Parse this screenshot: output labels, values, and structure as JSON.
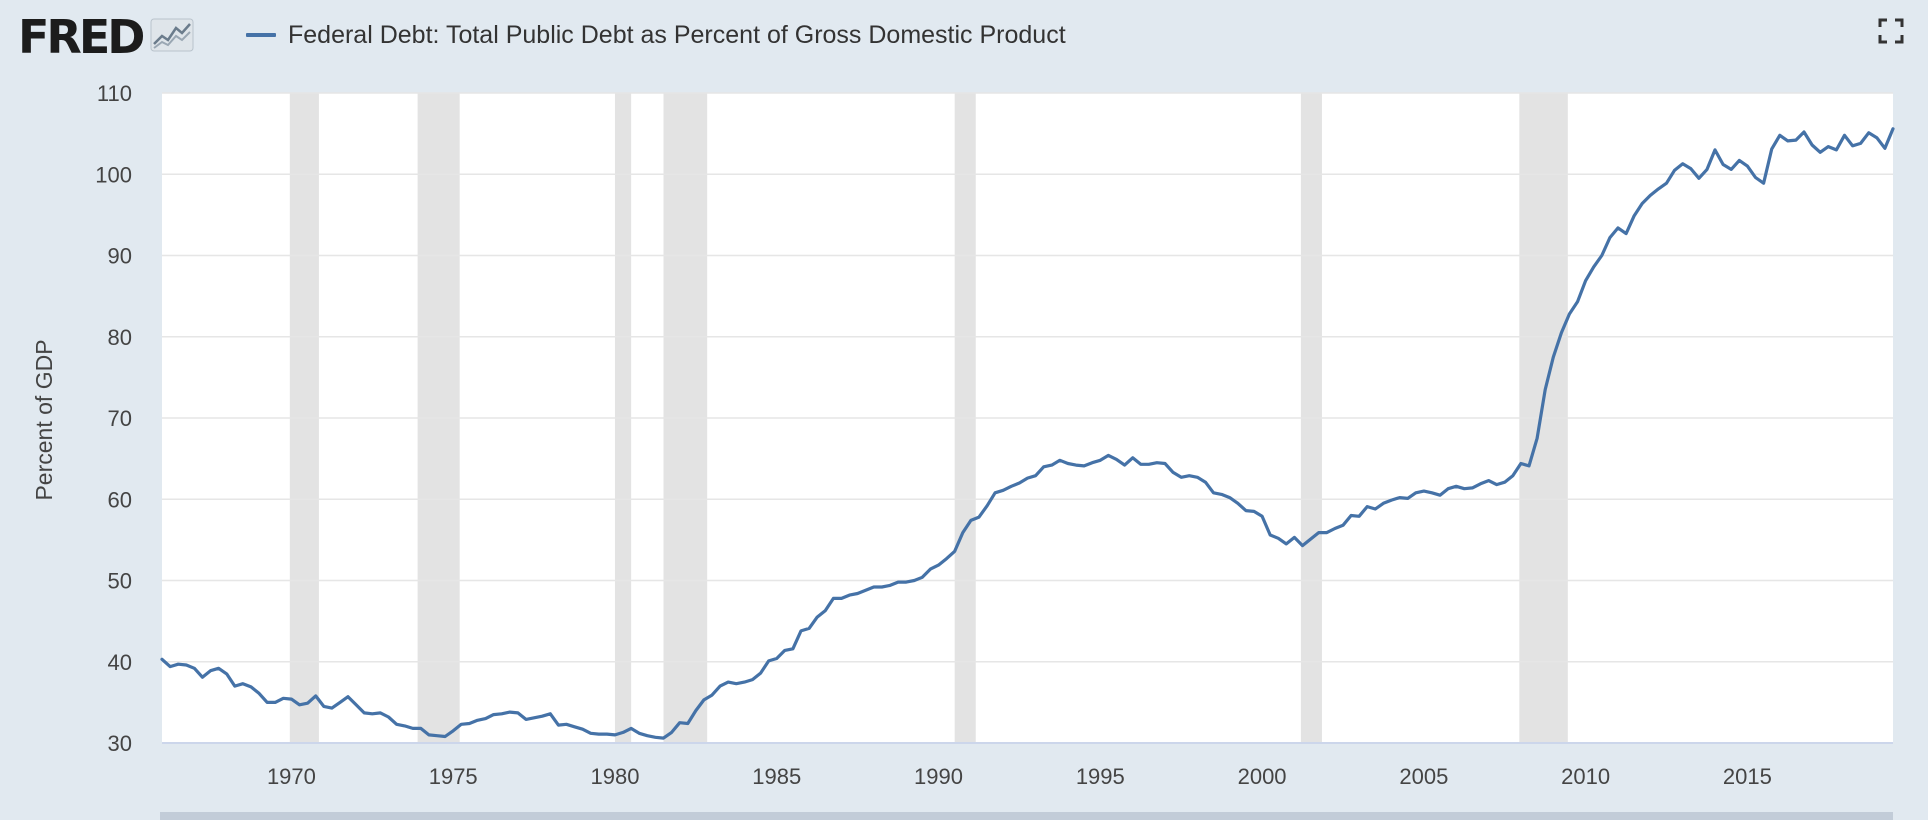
{
  "header": {
    "logo_text": "FRED",
    "legend_label": "Federal Debt: Total Public Debt as Percent of Gross Domestic Product"
  },
  "icons": {
    "logo": "line-chart-icon",
    "fullscreen": "fullscreen-icon"
  },
  "colors": {
    "series": "#4572a7",
    "recession": "#e3e3e3",
    "plot_background": "#ffffff",
    "page_background": "#e1e9f0",
    "grid": "#e6e6e6"
  },
  "chart_data": {
    "type": "line",
    "title": "",
    "xlabel": "",
    "ylabel": "Percent of GDP",
    "xlim": [
      1966.0,
      2019.5
    ],
    "ylim": [
      30,
      110
    ],
    "yticks": [
      30,
      40,
      50,
      60,
      70,
      80,
      90,
      100,
      110
    ],
    "xticks": [
      1970,
      1975,
      1980,
      1985,
      1990,
      1995,
      2000,
      2005,
      2010,
      2015
    ],
    "grid": true,
    "legend_position": "top-left",
    "recessions": [
      [
        1969.95,
        1970.85
      ],
      [
        1973.9,
        1975.2
      ],
      [
        1980.0,
        1980.5
      ],
      [
        1981.5,
        1982.85
      ],
      [
        1990.5,
        1991.15
      ],
      [
        2001.2,
        2001.85
      ],
      [
        2007.95,
        2009.45
      ]
    ],
    "series": [
      {
        "name": "Federal Debt: Total Public Debt as Percent of Gross Domestic Product",
        "x": [
          1966.0,
          1966.25,
          1966.5,
          1966.75,
          1967.0,
          1967.25,
          1967.5,
          1967.75,
          1968.0,
          1968.25,
          1968.5,
          1968.75,
          1969.0,
          1969.25,
          1969.5,
          1969.75,
          1970.0,
          1970.25,
          1970.5,
          1970.75,
          1971.0,
          1971.25,
          1971.5,
          1971.75,
          1972.0,
          1972.25,
          1972.5,
          1972.75,
          1973.0,
          1973.25,
          1973.5,
          1973.75,
          1974.0,
          1974.25,
          1974.5,
          1974.75,
          1975.0,
          1975.25,
          1975.5,
          1975.75,
          1976.0,
          1976.25,
          1976.5,
          1976.75,
          1977.0,
          1977.25,
          1977.5,
          1977.75,
          1978.0,
          1978.25,
          1978.5,
          1978.75,
          1979.0,
          1979.25,
          1979.5,
          1979.75,
          1980.0,
          1980.25,
          1980.5,
          1980.75,
          1981.0,
          1981.25,
          1981.5,
          1981.75,
          1982.0,
          1982.25,
          1982.5,
          1982.75,
          1983.0,
          1983.25,
          1983.5,
          1983.75,
          1984.0,
          1984.25,
          1984.5,
          1984.75,
          1985.0,
          1985.25,
          1985.5,
          1985.75,
          1986.0,
          1986.25,
          1986.5,
          1986.75,
          1987.0,
          1987.25,
          1987.5,
          1987.75,
          1988.0,
          1988.25,
          1988.5,
          1988.75,
          1989.0,
          1989.25,
          1989.5,
          1989.75,
          1990.0,
          1990.25,
          1990.5,
          1990.75,
          1991.0,
          1991.25,
          1991.5,
          1991.75,
          1992.0,
          1992.25,
          1992.5,
          1992.75,
          1993.0,
          1993.25,
          1993.5,
          1993.75,
          1994.0,
          1994.25,
          1994.5,
          1994.75,
          1995.0,
          1995.25,
          1995.5,
          1995.75,
          1996.0,
          1996.25,
          1996.5,
          1996.75,
          1997.0,
          1997.25,
          1997.5,
          1997.75,
          1998.0,
          1998.25,
          1998.5,
          1998.75,
          1999.0,
          1999.25,
          1999.5,
          1999.75,
          2000.0,
          2000.25,
          2000.5,
          2000.75,
          2001.0,
          2001.25,
          2001.5,
          2001.75,
          2002.0,
          2002.25,
          2002.5,
          2002.75,
          2003.0,
          2003.25,
          2003.5,
          2003.75,
          2004.0,
          2004.25,
          2004.5,
          2004.75,
          2005.0,
          2005.25,
          2005.5,
          2005.75,
          2006.0,
          2006.25,
          2006.5,
          2006.75,
          2007.0,
          2007.25,
          2007.5,
          2007.75,
          2008.0,
          2008.25,
          2008.5,
          2008.75,
          2009.0,
          2009.25,
          2009.5,
          2009.75,
          2010.0,
          2010.25,
          2010.5,
          2010.75,
          2011.0,
          2011.25,
          2011.5,
          2011.75,
          2012.0,
          2012.25,
          2012.5,
          2012.75,
          2013.0,
          2013.25,
          2013.5,
          2013.75,
          2014.0,
          2014.25,
          2014.5,
          2014.75,
          2015.0,
          2015.25,
          2015.5,
          2015.75,
          2016.0,
          2016.25,
          2016.5,
          2016.75,
          2017.0,
          2017.25,
          2017.5,
          2017.75,
          2018.0,
          2018.25,
          2018.5,
          2018.75,
          2019.0,
          2019.25,
          2019.5
        ],
        "values": [
          40.3,
          39.4,
          39.7,
          39.6,
          39.2,
          38.1,
          38.9,
          39.2,
          38.5,
          37.0,
          37.3,
          36.9,
          36.1,
          35.0,
          35.0,
          35.5,
          35.4,
          34.7,
          34.9,
          35.8,
          34.5,
          34.3,
          35.0,
          35.7,
          34.7,
          33.7,
          33.6,
          33.7,
          33.2,
          32.3,
          32.1,
          31.8,
          31.8,
          31.0,
          30.9,
          30.8,
          31.5,
          32.3,
          32.4,
          32.8,
          33.0,
          33.5,
          33.6,
          33.8,
          33.7,
          32.9,
          33.1,
          33.3,
          33.6,
          32.2,
          32.3,
          32.0,
          31.7,
          31.2,
          31.1,
          31.1,
          31.0,
          31.3,
          31.8,
          31.2,
          30.9,
          30.7,
          30.6,
          31.3,
          32.5,
          32.4,
          34.0,
          35.3,
          35.9,
          37.0,
          37.5,
          37.3,
          37.5,
          37.8,
          38.6,
          40.1,
          40.4,
          41.4,
          41.6,
          43.8,
          44.1,
          45.5,
          46.3,
          47.8,
          47.8,
          48.2,
          48.4,
          48.8,
          49.2,
          49.2,
          49.4,
          49.8,
          49.8,
          50.0,
          50.4,
          51.4,
          51.9,
          52.7,
          53.6,
          55.9,
          57.4,
          57.8,
          59.2,
          60.8,
          61.1,
          61.6,
          62.0,
          62.6,
          62.9,
          64.0,
          64.2,
          64.8,
          64.4,
          64.2,
          64.1,
          64.5,
          64.8,
          65.4,
          64.9,
          64.2,
          65.1,
          64.3,
          64.3,
          64.5,
          64.4,
          63.3,
          62.7,
          62.9,
          62.7,
          62.1,
          60.8,
          60.6,
          60.2,
          59.5,
          58.6,
          58.5,
          57.9,
          55.6,
          55.2,
          54.5,
          55.3,
          54.3,
          55.1,
          55.9,
          55.9,
          56.4,
          56.8,
          58.0,
          57.9,
          59.1,
          58.8,
          59.5,
          59.9,
          60.2,
          60.1,
          60.8,
          61.0,
          60.8,
          60.5,
          61.3,
          61.6,
          61.3,
          61.4,
          61.9,
          62.3,
          61.8,
          62.1,
          62.9,
          64.4,
          64.1,
          67.5,
          73.5,
          77.5,
          80.5,
          82.8,
          84.3,
          86.9,
          88.6,
          90.0,
          92.2,
          93.4,
          92.7,
          94.9,
          96.4,
          97.4,
          98.2,
          98.9,
          100.5,
          101.3,
          100.7,
          99.5,
          100.6,
          103.0,
          101.2,
          100.6,
          101.7,
          101.0,
          99.6,
          98.9,
          103.1,
          104.8,
          104.1,
          104.2,
          105.2,
          103.6,
          102.7,
          103.4,
          103.0,
          104.8,
          103.5,
          103.8,
          105.1,
          104.5,
          103.2,
          105.6
        ]
      }
    ]
  }
}
